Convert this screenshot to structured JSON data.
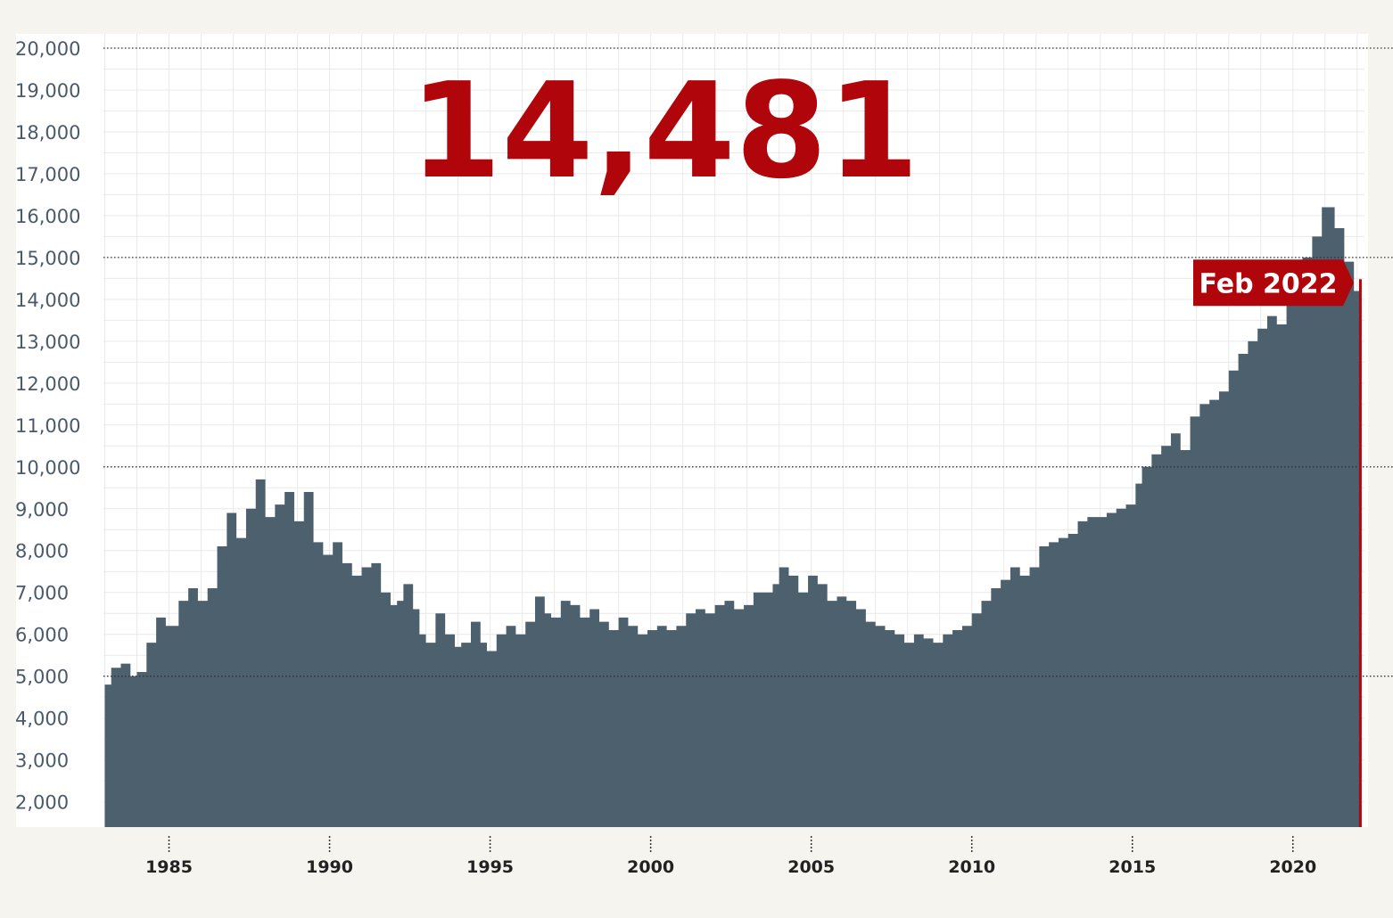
{
  "headline_value": "14,481",
  "latest_label": "Feb 2022",
  "colors": {
    "area": "#4d606e",
    "accent": "#b1050c",
    "grid": "#e9e9e9",
    "panel": "#ffffff",
    "background": "#f6f4ee"
  },
  "chart_data": {
    "type": "area",
    "title": "",
    "xlabel": "",
    "ylabel": "",
    "xlim": [
      1983,
      2022.2
    ],
    "ylim": [
      1000,
      20000
    ],
    "y_ticks": [
      {
        "value": 20000,
        "label": "20,000"
      },
      {
        "value": 19000,
        "label": "19,000"
      },
      {
        "value": 18000,
        "label": "18,000"
      },
      {
        "value": 17000,
        "label": "17,000"
      },
      {
        "value": 16000,
        "label": "16,000"
      },
      {
        "value": 15000,
        "label": "15,000"
      },
      {
        "value": 14000,
        "label": "14,000"
      },
      {
        "value": 13000,
        "label": "13,000"
      },
      {
        "value": 12000,
        "label": "12,000"
      },
      {
        "value": 11000,
        "label": "11,000"
      },
      {
        "value": 10000,
        "label": "10,000"
      },
      {
        "value": 9000,
        "label": "9,000"
      },
      {
        "value": 8000,
        "label": "8,000"
      },
      {
        "value": 7000,
        "label": "7,000"
      },
      {
        "value": 6000,
        "label": "6,000"
      },
      {
        "value": 5000,
        "label": "5,000"
      },
      {
        "value": 4000,
        "label": "4,000"
      },
      {
        "value": 3000,
        "label": "3,000"
      },
      {
        "value": 2000,
        "label": "2,000"
      }
    ],
    "major_gridlines": [
      20000,
      15000,
      10000,
      5000
    ],
    "x_ticks": [
      {
        "value": 1985,
        "label": "1985"
      },
      {
        "value": 1990,
        "label": "1990"
      },
      {
        "value": 1995,
        "label": "1995"
      },
      {
        "value": 2000,
        "label": "2000"
      },
      {
        "value": 2005,
        "label": "2005"
      },
      {
        "value": 2010,
        "label": "2010"
      },
      {
        "value": 2015,
        "label": "2015"
      },
      {
        "value": 2020,
        "label": "2020"
      }
    ],
    "grid": true,
    "series": [
      {
        "values": [
          [
            1983.0,
            4800
          ],
          [
            1983.1,
            4800
          ],
          [
            1983.2,
            5200
          ],
          [
            1983.5,
            5300
          ],
          [
            1983.8,
            5000
          ],
          [
            1984.0,
            5100
          ],
          [
            1984.3,
            5800
          ],
          [
            1984.6,
            6400
          ],
          [
            1984.9,
            6200
          ],
          [
            1985.3,
            6800
          ],
          [
            1985.6,
            7100
          ],
          [
            1985.9,
            6800
          ],
          [
            1986.2,
            7100
          ],
          [
            1986.5,
            8100
          ],
          [
            1986.8,
            8900
          ],
          [
            1987.1,
            8300
          ],
          [
            1987.4,
            9000
          ],
          [
            1987.7,
            9700
          ],
          [
            1988.0,
            8800
          ],
          [
            1988.3,
            9100
          ],
          [
            1988.6,
            9400
          ],
          [
            1988.9,
            8700
          ],
          [
            1989.2,
            9400
          ],
          [
            1989.5,
            8200
          ],
          [
            1989.8,
            7900
          ],
          [
            1990.1,
            8200
          ],
          [
            1990.4,
            7700
          ],
          [
            1990.7,
            7400
          ],
          [
            1991.0,
            7600
          ],
          [
            1991.3,
            7700
          ],
          [
            1991.6,
            7000
          ],
          [
            1991.9,
            6700
          ],
          [
            1992.1,
            6800
          ],
          [
            1992.3,
            7200
          ],
          [
            1992.6,
            6600
          ],
          [
            1992.8,
            6000
          ],
          [
            1993.0,
            5800
          ],
          [
            1993.3,
            6500
          ],
          [
            1993.6,
            6000
          ],
          [
            1993.9,
            5700
          ],
          [
            1994.1,
            5800
          ],
          [
            1994.4,
            6300
          ],
          [
            1994.7,
            5800
          ],
          [
            1994.9,
            5600
          ],
          [
            1995.2,
            6000
          ],
          [
            1995.5,
            6200
          ],
          [
            1995.8,
            6000
          ],
          [
            1996.1,
            6300
          ],
          [
            1996.4,
            6900
          ],
          [
            1996.7,
            6500
          ],
          [
            1996.9,
            6400
          ],
          [
            1997.2,
            6800
          ],
          [
            1997.5,
            6700
          ],
          [
            1997.8,
            6400
          ],
          [
            1998.1,
            6600
          ],
          [
            1998.4,
            6300
          ],
          [
            1998.7,
            6100
          ],
          [
            1999.0,
            6400
          ],
          [
            1999.3,
            6200
          ],
          [
            1999.6,
            6000
          ],
          [
            1999.9,
            6100
          ],
          [
            2000.2,
            6200
          ],
          [
            2000.5,
            6100
          ],
          [
            2000.8,
            6200
          ],
          [
            2001.1,
            6500
          ],
          [
            2001.4,
            6600
          ],
          [
            2001.7,
            6500
          ],
          [
            2002.0,
            6700
          ],
          [
            2002.3,
            6800
          ],
          [
            2002.6,
            6600
          ],
          [
            2002.9,
            6700
          ],
          [
            2003.2,
            7000
          ],
          [
            2003.5,
            7000
          ],
          [
            2003.8,
            7200
          ],
          [
            2004.0,
            7600
          ],
          [
            2004.3,
            7400
          ],
          [
            2004.6,
            7000
          ],
          [
            2004.9,
            7400
          ],
          [
            2005.2,
            7200
          ],
          [
            2005.5,
            6800
          ],
          [
            2005.8,
            6900
          ],
          [
            2006.1,
            6800
          ],
          [
            2006.4,
            6600
          ],
          [
            2006.7,
            6300
          ],
          [
            2007.0,
            6200
          ],
          [
            2007.3,
            6100
          ],
          [
            2007.6,
            6000
          ],
          [
            2007.9,
            5800
          ],
          [
            2008.2,
            6000
          ],
          [
            2008.5,
            5900
          ],
          [
            2008.8,
            5800
          ],
          [
            2009.1,
            6000
          ],
          [
            2009.4,
            6100
          ],
          [
            2009.7,
            6200
          ],
          [
            2010.0,
            6500
          ],
          [
            2010.3,
            6800
          ],
          [
            2010.6,
            7100
          ],
          [
            2010.9,
            7300
          ],
          [
            2011.2,
            7600
          ],
          [
            2011.5,
            7400
          ],
          [
            2011.8,
            7600
          ],
          [
            2012.1,
            8100
          ],
          [
            2012.4,
            8200
          ],
          [
            2012.7,
            8300
          ],
          [
            2013.0,
            8400
          ],
          [
            2013.3,
            8700
          ],
          [
            2013.6,
            8800
          ],
          [
            2013.9,
            8800
          ],
          [
            2014.2,
            8900
          ],
          [
            2014.5,
            9000
          ],
          [
            2014.8,
            9100
          ],
          [
            2015.1,
            9600
          ],
          [
            2015.3,
            10000
          ],
          [
            2015.6,
            10300
          ],
          [
            2015.9,
            10500
          ],
          [
            2016.2,
            10800
          ],
          [
            2016.5,
            10400
          ],
          [
            2016.8,
            11200
          ],
          [
            2017.1,
            11500
          ],
          [
            2017.4,
            11600
          ],
          [
            2017.7,
            11800
          ],
          [
            2018.0,
            12300
          ],
          [
            2018.3,
            12700
          ],
          [
            2018.6,
            13000
          ],
          [
            2018.9,
            13300
          ],
          [
            2019.2,
            13600
          ],
          [
            2019.5,
            13400
          ],
          [
            2019.8,
            13900
          ],
          [
            2020.0,
            14400
          ],
          [
            2020.3,
            15000
          ],
          [
            2020.6,
            15500
          ],
          [
            2020.9,
            16200
          ],
          [
            2021.1,
            16200
          ],
          [
            2021.3,
            15700
          ],
          [
            2021.6,
            14900
          ],
          [
            2021.9,
            14200
          ],
          [
            2022.1,
            14481
          ]
        ]
      }
    ]
  }
}
